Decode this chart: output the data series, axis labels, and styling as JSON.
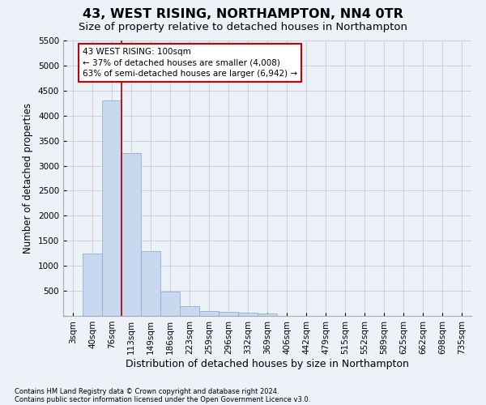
{
  "title": "43, WEST RISING, NORTHAMPTON, NN4 0TR",
  "subtitle": "Size of property relative to detached houses in Northampton",
  "xlabel": "Distribution of detached houses by size in Northampton",
  "ylabel": "Number of detached properties",
  "footnote1": "Contains HM Land Registry data © Crown copyright and database right 2024.",
  "footnote2": "Contains public sector information licensed under the Open Government Licence v3.0.",
  "categories": [
    "3sqm",
    "40sqm",
    "76sqm",
    "113sqm",
    "149sqm",
    "186sqm",
    "223sqm",
    "259sqm",
    "296sqm",
    "332sqm",
    "369sqm",
    "406sqm",
    "442sqm",
    "479sqm",
    "515sqm",
    "552sqm",
    "589sqm",
    "625sqm",
    "662sqm",
    "698sqm",
    "735sqm"
  ],
  "values": [
    0,
    1250,
    4300,
    3250,
    1300,
    480,
    200,
    105,
    75,
    60,
    50,
    0,
    0,
    0,
    0,
    0,
    0,
    0,
    0,
    0,
    0
  ],
  "bar_color": "#c8d8ee",
  "bar_edge_color": "#8ab0d8",
  "grid_color": "#c8d0dc",
  "background_color": "#edf1f8",
  "property_line_color": "#aa0000",
  "annotation_text": "43 WEST RISING: 100sqm\n← 37% of detached houses are smaller (4,008)\n63% of semi-detached houses are larger (6,942) →",
  "annotation_box_color": "#ffffff",
  "annotation_box_edge": "#cc0000",
  "ylim_max": 5500,
  "yticks": [
    0,
    500,
    1000,
    1500,
    2000,
    2500,
    3000,
    3500,
    4000,
    4500,
    5000,
    5500
  ],
  "title_fontsize": 11.5,
  "subtitle_fontsize": 9.5,
  "xlabel_fontsize": 9,
  "ylabel_fontsize": 8.5,
  "tick_fontsize": 7.5,
  "annot_fontsize": 7.5
}
